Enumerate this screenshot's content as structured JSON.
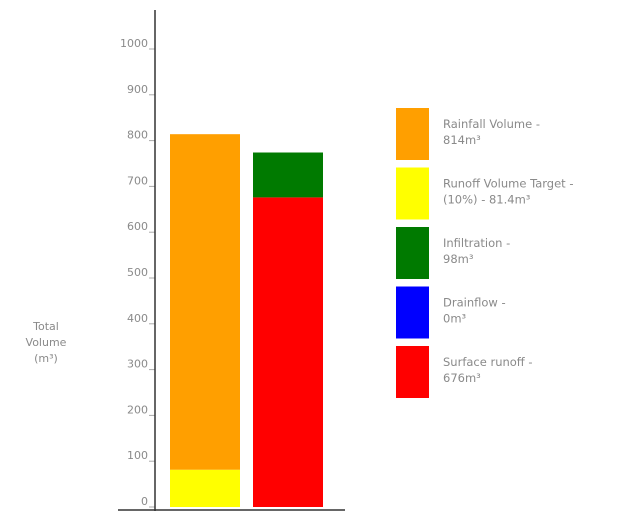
{
  "chart_data": {
    "type": "bar",
    "stacked": true,
    "ylabel": [
      "Total",
      "Volume",
      "(m³)"
    ],
    "ylim": [
      0,
      1000
    ],
    "yticks": [
      0,
      100,
      200,
      300,
      400,
      500,
      600,
      700,
      800,
      900,
      1000
    ],
    "grid": false,
    "legend_position": "right",
    "categories": [
      "",
      ""
    ],
    "bars": [
      {
        "segments": [
          {
            "series": "Runoff Volume Target",
            "value": 81.4
          },
          {
            "series": "Rainfall Volume",
            "value": 732.6
          }
        ]
      },
      {
        "segments": [
          {
            "series": "Surface runoff",
            "value": 676
          },
          {
            "series": "Drainflow",
            "value": 0
          },
          {
            "series": "Infiltration",
            "value": 98
          }
        ]
      }
    ],
    "legend": [
      {
        "key": "Rainfall Volume",
        "color": "#ff9f00",
        "lines": [
          "Rainfall Volume -",
          "814m³"
        ]
      },
      {
        "key": "Runoff Volume Target",
        "color": "#ffff00",
        "lines": [
          "Runoff Volume Target -",
          "(10%) - 81.4m³"
        ]
      },
      {
        "key": "Infiltration",
        "color": "#007a00",
        "lines": [
          "Infiltration -",
          "98m³"
        ]
      },
      {
        "key": "Drainflow",
        "color": "#0000ff",
        "lines": [
          "Drainflow -",
          "0m³"
        ]
      },
      {
        "key": "Surface runoff",
        "color": "#ff0000",
        "lines": [
          "Surface runoff -",
          "676m³"
        ]
      }
    ]
  }
}
